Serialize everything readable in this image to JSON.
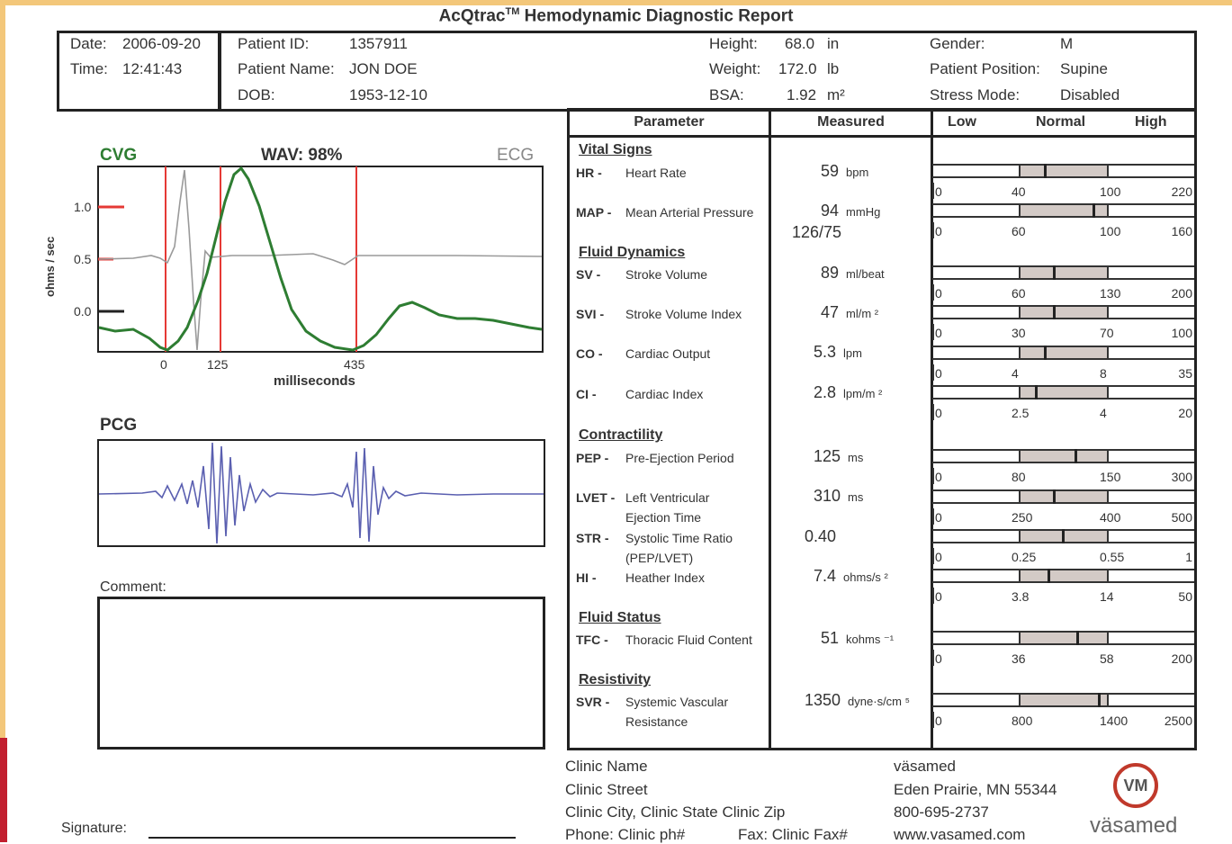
{
  "title": "AcQtrac",
  "title_tm": "TM",
  "title_rest": " Hemodynamic Diagnostic Report",
  "header": {
    "date_label": "Date:",
    "date": "2006-09-20",
    "time_label": "Time:",
    "time": "12:41:43",
    "pid_label": "Patient ID:",
    "pid": "1357911",
    "pname_label": "Patient Name:",
    "pname": "JON DOE",
    "dob_label": "DOB:",
    "dob": "1953-12-10",
    "height_label": "Height:",
    "height": "68.0",
    "height_unit": "in",
    "weight_label": "Weight:",
    "weight": "172.0",
    "weight_unit": "lb",
    "bsa_label": "BSA:",
    "bsa": "1.92",
    "bsa_unit": "m²",
    "gender_label": "Gender:",
    "gender": "M",
    "position_label": "Patient Position:",
    "position": "Supine",
    "stress_label": "Stress Mode:",
    "stress": "Disabled"
  },
  "cvg": {
    "cvg_label": "CVG",
    "wav_label": "WAV: 98%",
    "ecg_label": "ECG",
    "ylabel": "ohms / sec",
    "yticks": [
      "1.0",
      "0.5",
      "0.0"
    ],
    "xticks": [
      "0",
      "125",
      "435"
    ],
    "xlabel": "milliseconds"
  },
  "pcg": {
    "label": "PCG"
  },
  "comment_label": "Comment:",
  "signature_label": "Signature:",
  "table": {
    "col_param": "Parameter",
    "col_measured": "Measured",
    "col_low": "Low",
    "col_normal": "Normal",
    "col_high": "High",
    "sections": {
      "vital": "Vital Signs",
      "fluid": "Fluid Dynamics",
      "contract": "Contractility",
      "status": "Fluid Status",
      "resist": "Resistivity"
    },
    "rows": [
      {
        "abbr": "HR -",
        "name": "Heart Rate",
        "value": "59",
        "unit": "bpm",
        "scale": [
          "0",
          "40",
          "100",
          "220"
        ]
      },
      {
        "abbr": "MAP -",
        "name": "Mean Arterial Pressure",
        "value": "94",
        "unit": "mmHg",
        "extra": "126/75",
        "scale": [
          "0",
          "60",
          "100",
          "160"
        ]
      },
      {
        "abbr": "SV -",
        "name": "Stroke Volume",
        "value": "89",
        "unit": "ml/beat",
        "scale": [
          "0",
          "60",
          "130",
          "200"
        ]
      },
      {
        "abbr": "SVI -",
        "name": "Stroke Volume Index",
        "value": "47",
        "unit": "ml/m ²",
        "scale": [
          "0",
          "30",
          "70",
          "100"
        ]
      },
      {
        "abbr": "CO -",
        "name": "Cardiac Output",
        "value": "5.3",
        "unit": "lpm",
        "scale": [
          "0",
          "4",
          "8",
          "35"
        ]
      },
      {
        "abbr": "CI -",
        "name": "Cardiac Index",
        "value": "2.8",
        "unit": "lpm/m ²",
        "scale": [
          "0",
          "2.5",
          "4",
          "20"
        ]
      },
      {
        "abbr": "PEP -",
        "name": "Pre-Ejection Period",
        "value": "125",
        "unit": "ms",
        "scale": [
          "0",
          "80",
          "150",
          "300"
        ]
      },
      {
        "abbr": "LVET -",
        "name": "Left Ventricular",
        "name2": "Ejection Time",
        "value": "310",
        "unit": "ms",
        "scale": [
          "0",
          "250",
          "400",
          "500"
        ]
      },
      {
        "abbr": "STR -",
        "name": "Systolic Time Ratio",
        "name2": "(PEP/LVET)",
        "value": "0.40",
        "unit": "",
        "scale": [
          "0",
          "0.25",
          "0.55",
          "1"
        ]
      },
      {
        "abbr": "HI -",
        "name": "Heather Index",
        "value": "7.4",
        "unit": "ohms/s ²",
        "scale": [
          "0",
          "3.8",
          "14",
          "50"
        ]
      },
      {
        "abbr": "TFC -",
        "name": "Thoracic Fluid Content",
        "value": "51",
        "unit": "kohms ⁻¹",
        "scale": [
          "0",
          "36",
          "58",
          "200"
        ]
      },
      {
        "abbr": "SVR -",
        "name": "Systemic Vascular",
        "name2": "Resistance",
        "value": "1350",
        "unit": "dyne·s/cm ⁵",
        "scale": [
          "0",
          "800",
          "1400",
          "2500"
        ]
      }
    ],
    "marker_fraction_within_normal": [
      0.28,
      0.82,
      0.38,
      0.38,
      0.28,
      0.18,
      0.62,
      0.38,
      0.48,
      0.32,
      0.64,
      0.88
    ]
  },
  "footer": {
    "clinic_name": "Clinic Name",
    "clinic_street": "Clinic Street",
    "clinic_city": "Clinic City, Clinic State Clinic Zip",
    "phone": "Phone: Clinic ph#",
    "fax": "Fax: Clinic Fax#",
    "company": "väsamed",
    "company_city": "Eden Prairie, MN 55344",
    "company_phone": "800-695-2737",
    "company_web": "www.vasamed.com",
    "logo_text": "väsamed",
    "logo_mark": "VM"
  },
  "colors": {
    "cvg": "#2e7d32",
    "ecg": "#999999",
    "pcg": "#5a5fb0",
    "marker": "#e53935",
    "normal_band": "#d3cac6"
  }
}
